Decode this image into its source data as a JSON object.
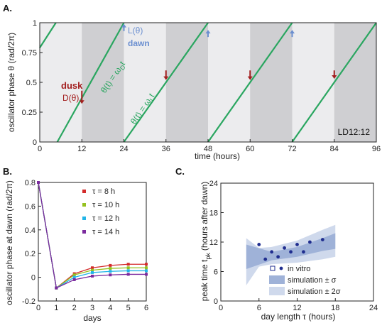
{
  "chart_data": [
    {
      "panel": "A.",
      "type": "line",
      "xlabel": "time (hours)",
      "ylabel": "oscillator phase θ (rad/2π)",
      "xlim": [
        0,
        96
      ],
      "ylim": [
        0,
        1
      ],
      "xticks": [
        0,
        12,
        24,
        36,
        48,
        60,
        72,
        84,
        96
      ],
      "yticks": [
        "0",
        "0.25",
        "0.5",
        "0.75",
        "1"
      ],
      "dark_intervals": [
        [
          12,
          24
        ],
        [
          36,
          48
        ],
        [
          60,
          72
        ],
        [
          84,
          96
        ]
      ],
      "series": [
        {
          "color": "#2aa660",
          "segments": [
            [
              [
                0,
                0.79
              ],
              [
                4.6,
                1.0
              ]
            ],
            [
              [
                5,
                0.0
              ],
              [
                24,
                1.0
              ]
            ],
            [
              [
                24,
                0.0
              ],
              [
                48,
                1.0
              ]
            ],
            [
              [
                48,
                0.0
              ],
              [
                72,
                1.0
              ]
            ],
            [
              [
                72,
                0.0
              ],
              [
                96,
                1.0
              ]
            ]
          ]
        }
      ],
      "dusk_arrows": [
        {
          "x": 12,
          "y_from": 0.43,
          "y_to": 0.32
        },
        {
          "x": 36,
          "y_from": 0.6,
          "y_to": 0.52
        },
        {
          "x": 60,
          "y_from": 0.6,
          "y_to": 0.52
        },
        {
          "x": 84,
          "y_from": 0.6,
          "y_to": 0.53
        }
      ],
      "dawn_arrows": [
        {
          "x": 24,
          "y_from": 0.93,
          "y_to": 0.99
        },
        {
          "x": 48,
          "y_from": 0.88,
          "y_to": 0.94
        },
        {
          "x": 72,
          "y_from": 0.88,
          "y_to": 0.94
        }
      ],
      "annotations": {
        "dusk": "dusk",
        "d_theta": "D(θ)",
        "l_theta": "L(θ)",
        "dawn": "dawn",
        "eq_dark": "θ(t) = ω",
        "eq_dark_sub": "D",
        "eq_dark_tail": "t",
        "eq_light": "θ(t) = ω",
        "eq_light_sub": "L",
        "eq_light_tail": "t",
        "regime": "LD12:12"
      },
      "colors": {
        "dusk": "#a31f1f",
        "dawn": "#6b8fd0",
        "line": "#2aa660",
        "dark": "#cfcfd2",
        "light": "#ececee"
      }
    },
    {
      "panel": "B.",
      "type": "line",
      "xlabel": "days",
      "ylabel": "oscillator phase at dawn (rad/2π)",
      "xlim": [
        0,
        6
      ],
      "ylim": [
        -0.2,
        0.8
      ],
      "xticks": [
        "0",
        "1",
        "2",
        "3",
        "4",
        "5",
        "6"
      ],
      "yticks": [
        "-0.2",
        "0",
        "0.2",
        "0.4",
        "0.6",
        "0.8"
      ],
      "x": [
        0,
        1,
        2,
        3,
        4,
        5,
        6
      ],
      "series": [
        {
          "name": "τ = 8 h",
          "color": "#d42b2b",
          "values": [
            0.8,
            -0.09,
            0.03,
            0.08,
            0.1,
            0.11,
            0.11
          ]
        },
        {
          "name": "τ = 10 h",
          "color": "#95c11f",
          "values": [
            0.8,
            -0.09,
            0.02,
            0.06,
            0.075,
            0.08,
            0.08
          ]
        },
        {
          "name": "τ = 12 h",
          "color": "#22b5e8",
          "values": [
            0.8,
            -0.09,
            0.0,
            0.04,
            0.05,
            0.055,
            0.055
          ]
        },
        {
          "name": "τ = 14 h",
          "color": "#7b2a9e",
          "values": [
            0.8,
            -0.09,
            -0.02,
            0.01,
            0.02,
            0.025,
            0.025
          ]
        }
      ]
    },
    {
      "panel": "C.",
      "type": "scatter",
      "xlabel": "day length τ (hours)",
      "ylabel_main": "peak time t",
      "ylabel_sub": "pk",
      "ylabel_tail": "(hours after dawn)",
      "xlim": [
        0,
        24
      ],
      "ylim": [
        0,
        24
      ],
      "xticks": [
        "0",
        "6",
        "12",
        "18",
        "24"
      ],
      "yticks": [
        "0",
        "6",
        "12",
        "18",
        "24"
      ],
      "points": [
        {
          "x": 6,
          "y": 11.5
        },
        {
          "x": 7,
          "y": 8.5
        },
        {
          "x": 8,
          "y": 10.0
        },
        {
          "x": 9,
          "y": 9.0
        },
        {
          "x": 10,
          "y": 10.8
        },
        {
          "x": 11,
          "y": 10.0
        },
        {
          "x": 12,
          "y": 11.5
        },
        {
          "x": 13,
          "y": 10.0
        },
        {
          "x": 14,
          "y": 12.0
        },
        {
          "x": 16,
          "y": 12.5
        }
      ],
      "band_sigma": {
        "x": [
          4,
          8,
          12,
          16,
          18
        ],
        "lower": [
          6.5,
          8.3,
          9.0,
          10.2,
          10.6
        ],
        "upper": [
          11.5,
          10.0,
          11.0,
          12.8,
          13.8
        ]
      },
      "band_2sigma": {
        "x": [
          4,
          6,
          8,
          12,
          16,
          18
        ],
        "lower": [
          3.2,
          7.0,
          7.5,
          7.8,
          8.5,
          9.0
        ],
        "upper": [
          12.8,
          10.8,
          11.0,
          12.3,
          14.5,
          15.5
        ]
      },
      "legend": [
        {
          "label": "in vitro"
        },
        {
          "label": "simulation ± σ"
        },
        {
          "label": "simulation ± 2σ"
        }
      ],
      "colors": {
        "points": "#1f2d8f",
        "sigma": "#9fb2d8",
        "two_sigma": "#cfd9ec"
      }
    }
  ]
}
